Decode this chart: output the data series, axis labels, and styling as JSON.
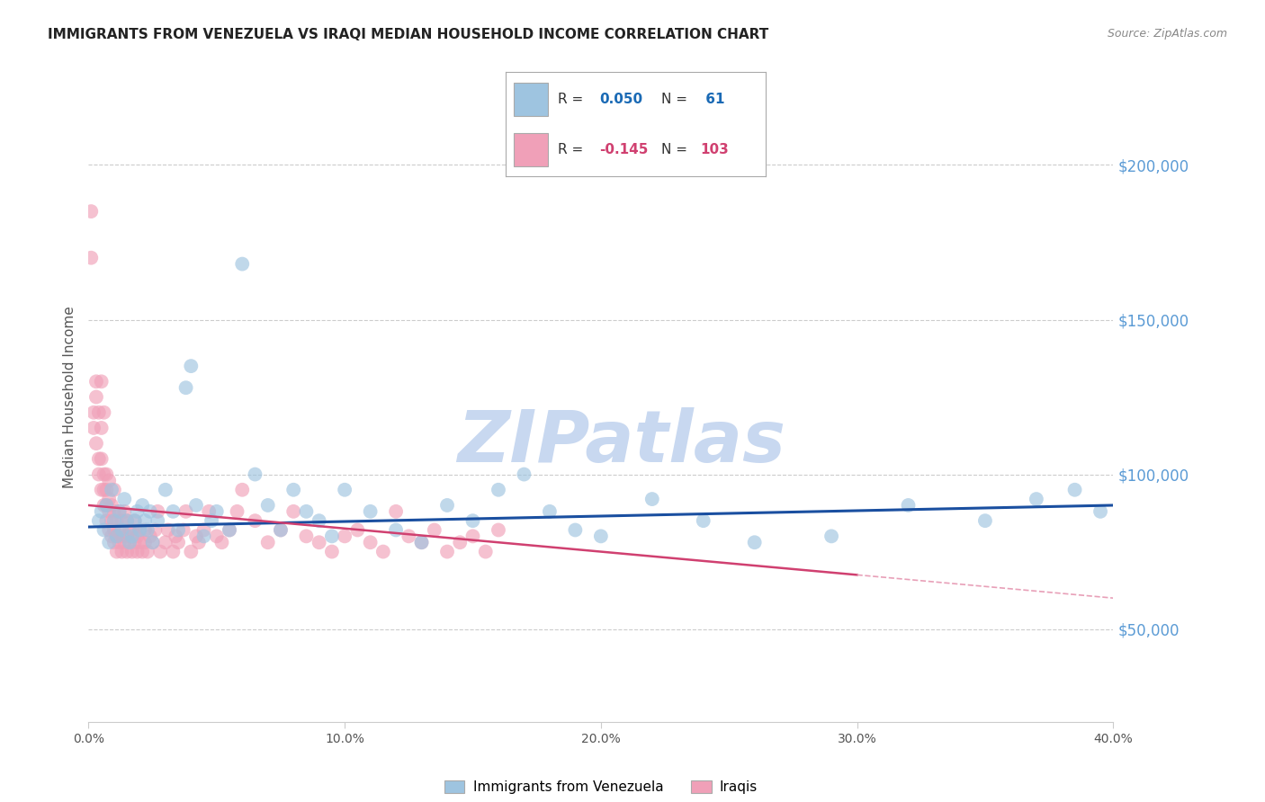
{
  "title": "IMMIGRANTS FROM VENEZUELA VS IRAQI MEDIAN HOUSEHOLD INCOME CORRELATION CHART",
  "source": "Source: ZipAtlas.com",
  "ylabel": "Median Household Income",
  "xlim": [
    0.0,
    0.4
  ],
  "ylim": [
    20000,
    230000
  ],
  "xticks": [
    0.0,
    0.1,
    0.2,
    0.3,
    0.4
  ],
  "xtick_labels": [
    "0.0%",
    "10.0%",
    "20.0%",
    "30.0%",
    "40.0%"
  ],
  "ytick_labels": [
    "$50,000",
    "$100,000",
    "$150,000",
    "$200,000"
  ],
  "ytick_values": [
    50000,
    100000,
    150000,
    200000
  ],
  "background_color": "#ffffff",
  "grid_color": "#cccccc",
  "watermark": "ZIPatlas",
  "watermark_color": "#c8d8f0",
  "legend_label1": "Immigrants from Venezuela",
  "legend_label2": "Iraqis",
  "blue_color": "#9ec4e0",
  "pink_color": "#f0a0b8",
  "trend_blue_color": "#1a4fa0",
  "trend_pink_color": "#d04070",
  "trend_pink_faint": "#e8a0b8",
  "title_fontsize": 11,
  "venezuela_R": 0.05,
  "venezuela_N": 61,
  "iraq_R": -0.145,
  "iraq_N": 103,
  "venezuela_x": [
    0.004,
    0.005,
    0.006,
    0.007,
    0.008,
    0.009,
    0.01,
    0.011,
    0.012,
    0.013,
    0.014,
    0.015,
    0.016,
    0.017,
    0.018,
    0.019,
    0.02,
    0.021,
    0.022,
    0.023,
    0.024,
    0.025,
    0.027,
    0.03,
    0.033,
    0.035,
    0.038,
    0.04,
    0.042,
    0.045,
    0.048,
    0.05,
    0.055,
    0.06,
    0.065,
    0.07,
    0.075,
    0.08,
    0.085,
    0.09,
    0.095,
    0.1,
    0.11,
    0.12,
    0.13,
    0.14,
    0.15,
    0.16,
    0.17,
    0.18,
    0.19,
    0.2,
    0.22,
    0.24,
    0.26,
    0.29,
    0.32,
    0.35,
    0.37,
    0.385,
    0.395
  ],
  "venezuela_y": [
    85000,
    88000,
    82000,
    90000,
    78000,
    95000,
    85000,
    80000,
    88000,
    82000,
    92000,
    85000,
    78000,
    80000,
    85000,
    88000,
    82000,
    90000,
    85000,
    82000,
    88000,
    78000,
    85000,
    95000,
    88000,
    82000,
    128000,
    135000,
    90000,
    80000,
    85000,
    88000,
    82000,
    168000,
    100000,
    90000,
    82000,
    95000,
    88000,
    85000,
    80000,
    95000,
    88000,
    82000,
    78000,
    90000,
    85000,
    95000,
    100000,
    88000,
    82000,
    80000,
    92000,
    85000,
    78000,
    80000,
    90000,
    85000,
    92000,
    95000,
    88000
  ],
  "iraq_x": [
    0.001,
    0.001,
    0.002,
    0.002,
    0.003,
    0.003,
    0.003,
    0.004,
    0.004,
    0.004,
    0.005,
    0.005,
    0.005,
    0.005,
    0.006,
    0.006,
    0.006,
    0.006,
    0.007,
    0.007,
    0.007,
    0.007,
    0.008,
    0.008,
    0.008,
    0.008,
    0.009,
    0.009,
    0.009,
    0.01,
    0.01,
    0.01,
    0.01,
    0.011,
    0.011,
    0.011,
    0.012,
    0.012,
    0.012,
    0.013,
    0.013,
    0.013,
    0.014,
    0.014,
    0.015,
    0.015,
    0.015,
    0.016,
    0.016,
    0.017,
    0.017,
    0.018,
    0.018,
    0.019,
    0.019,
    0.02,
    0.02,
    0.021,
    0.022,
    0.022,
    0.023,
    0.024,
    0.025,
    0.026,
    0.027,
    0.028,
    0.03,
    0.031,
    0.033,
    0.034,
    0.035,
    0.037,
    0.038,
    0.04,
    0.042,
    0.043,
    0.045,
    0.047,
    0.05,
    0.052,
    0.055,
    0.058,
    0.06,
    0.065,
    0.07,
    0.075,
    0.08,
    0.085,
    0.09,
    0.095,
    0.1,
    0.105,
    0.11,
    0.115,
    0.12,
    0.125,
    0.13,
    0.135,
    0.14,
    0.145,
    0.15,
    0.155,
    0.16
  ],
  "iraq_y": [
    185000,
    170000,
    120000,
    115000,
    130000,
    110000,
    125000,
    105000,
    120000,
    100000,
    95000,
    105000,
    115000,
    130000,
    90000,
    95000,
    100000,
    120000,
    85000,
    90000,
    95000,
    100000,
    82000,
    88000,
    92000,
    98000,
    80000,
    85000,
    90000,
    78000,
    82000,
    88000,
    95000,
    75000,
    80000,
    85000,
    78000,
    82000,
    88000,
    75000,
    80000,
    85000,
    78000,
    88000,
    75000,
    80000,
    85000,
    78000,
    82000,
    75000,
    82000,
    78000,
    85000,
    75000,
    80000,
    78000,
    82000,
    75000,
    78000,
    82000,
    75000,
    80000,
    78000,
    82000,
    88000,
    75000,
    78000,
    82000,
    75000,
    80000,
    78000,
    82000,
    88000,
    75000,
    80000,
    78000,
    82000,
    88000,
    80000,
    78000,
    82000,
    88000,
    95000,
    85000,
    78000,
    82000,
    88000,
    80000,
    78000,
    75000,
    80000,
    82000,
    78000,
    75000,
    88000,
    80000,
    78000,
    82000,
    75000,
    78000,
    80000,
    75000,
    82000
  ]
}
